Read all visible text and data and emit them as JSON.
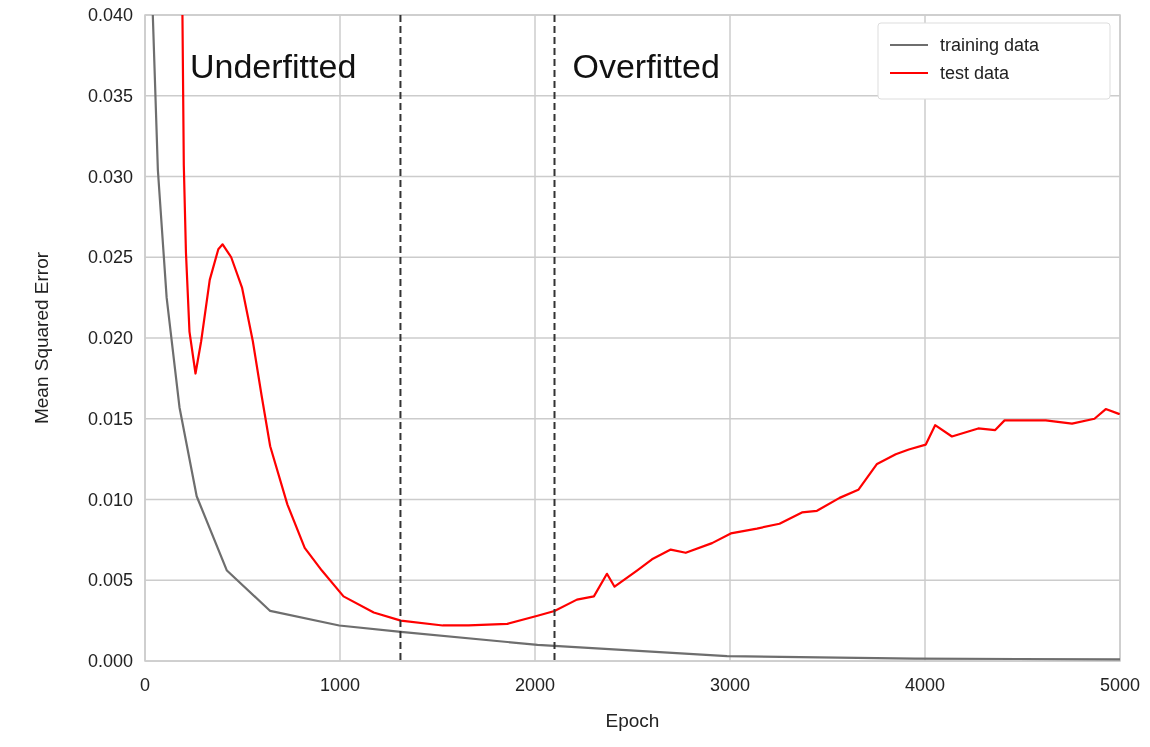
{
  "chart_data": {
    "type": "line",
    "xlabel": "Epoch",
    "ylabel": "Mean Squared Error",
    "xlim": [
      0,
      5000
    ],
    "xticks": [
      0,
      1000,
      2000,
      3000,
      4000,
      5000
    ],
    "ylim": [
      0,
      0.04
    ],
    "yticks": [
      {
        "value": 0,
        "label": "0.000"
      },
      {
        "value": 0.005,
        "label": "0.005"
      },
      {
        "value": 0.01,
        "label": "0.010"
      },
      {
        "value": 0.015,
        "label": "0.015"
      },
      {
        "value": 0.02,
        "label": "0.020"
      },
      {
        "value": 0.025,
        "label": "0.025"
      },
      {
        "value": 0.03,
        "label": "0.030"
      },
      {
        "value": 0.035,
        "label": "0.035"
      },
      {
        "value": 0.04,
        "label": "0.040"
      }
    ],
    "grid": true,
    "legend": "top right",
    "line_style": "solid",
    "series": [
      {
        "name": "training data",
        "color": "#6e6e6e",
        "x": [
          40,
          66,
          111,
          177,
          265,
          420,
          642,
          996,
          1312,
          2013,
          2985,
          3946,
          5000
        ],
        "values": [
          0.04,
          0.0304,
          0.0225,
          0.0157,
          0.0102,
          0.0056,
          0.0031,
          0.0022,
          0.0018,
          0.001,
          0.0003,
          0.00015,
          0.0001
        ]
      },
      {
        "name": "test data",
        "color": "#ff0000",
        "x": [
          192,
          199,
          210,
          228,
          259,
          288,
          332,
          376,
          398,
          442,
          498,
          553,
          597,
          642,
          730,
          819,
          907,
          1018,
          1173,
          1312,
          1527,
          1659,
          1858,
          2013,
          2100,
          2215,
          2302,
          2369,
          2408,
          2523,
          2600,
          2696,
          2773,
          2908,
          3004,
          3138,
          3254,
          3369,
          3446,
          3562,
          3658,
          3754,
          3850,
          3917,
          4004,
          4052,
          4138,
          4273,
          4360,
          4408,
          4619,
          4754,
          4869,
          4927,
          4994
        ],
        "values": [
          0.04,
          0.0307,
          0.0253,
          0.0204,
          0.0178,
          0.0198,
          0.0236,
          0.0255,
          0.0258,
          0.025,
          0.0231,
          0.0198,
          0.0165,
          0.0133,
          0.0097,
          0.007,
          0.0056,
          0.004,
          0.003,
          0.0025,
          0.0022,
          0.0022,
          0.0023,
          0.0028,
          0.0031,
          0.0038,
          0.004,
          0.0054,
          0.0046,
          0.0056,
          0.0063,
          0.0069,
          0.0067,
          0.0073,
          0.0079,
          0.0082,
          0.0085,
          0.0092,
          0.0093,
          0.0101,
          0.0106,
          0.0122,
          0.0128,
          0.0131,
          0.0134,
          0.0146,
          0.0139,
          0.0144,
          0.0143,
          0.0149,
          0.0149,
          0.0147,
          0.015,
          0.0156,
          0.0153
        ]
      }
    ],
    "ref_lines": [
      {
        "axis": "x",
        "value": 1310,
        "color": "#333333",
        "line_style": "dashed"
      },
      {
        "axis": "x",
        "value": 2100,
        "color": "#333333",
        "line_style": "dashed"
      }
    ],
    "annotations": [
      "Underfitted",
      "Overfitted"
    ]
  }
}
